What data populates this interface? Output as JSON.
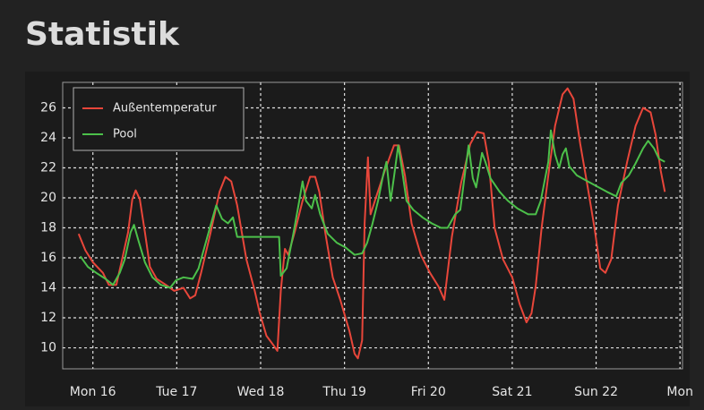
{
  "chart_data": {
    "type": "line",
    "title": "Statistik",
    "legend": "upper left",
    "grid": true,
    "xlim": [
      -0.36,
      7.03
    ],
    "ylim": [
      8.6,
      27.7
    ],
    "xticks": [
      {
        "value": 0,
        "label": "Mon 16"
      },
      {
        "value": 1,
        "label": "Tue 17"
      },
      {
        "value": 2,
        "label": "Wed 18"
      },
      {
        "value": 3,
        "label": "Thu 19"
      },
      {
        "value": 4,
        "label": "Fri 20"
      },
      {
        "value": 5,
        "label": "Sat 21"
      },
      {
        "value": 6,
        "label": "Sun 22"
      },
      {
        "value": 7,
        "label": "Mon"
      }
    ],
    "yticks": [
      10,
      12,
      14,
      16,
      18,
      20,
      22,
      24,
      26
    ],
    "series": [
      {
        "name": "Außentemperatur",
        "color": "#e8463a",
        "x": [
          -0.17,
          -0.09,
          0.0,
          0.12,
          0.19,
          0.28,
          0.36,
          0.42,
          0.47,
          0.51,
          0.56,
          0.62,
          0.68,
          0.76,
          0.87,
          0.97,
          1.08,
          1.16,
          1.22,
          1.29,
          1.4,
          1.51,
          1.58,
          1.65,
          1.72,
          1.83,
          1.93,
          1.99,
          2.07,
          2.15,
          2.2,
          2.24,
          2.29,
          2.33,
          2.41,
          2.5,
          2.59,
          2.65,
          2.7,
          2.77,
          2.86,
          2.95,
          3.06,
          3.12,
          3.16,
          3.21,
          3.24,
          3.28,
          3.31,
          3.38,
          3.48,
          3.59,
          3.65,
          3.72,
          3.8,
          3.91,
          4.02,
          4.12,
          4.19,
          4.28,
          4.39,
          4.5,
          4.58,
          4.66,
          4.72,
          4.79,
          4.89,
          5.0,
          5.09,
          5.17,
          5.23,
          5.28,
          5.35,
          5.43,
          5.51,
          5.6,
          5.66,
          5.73,
          5.81,
          5.9,
          5.98,
          6.05,
          6.11,
          6.18,
          6.26,
          6.37,
          6.47,
          6.56,
          6.65,
          6.71,
          6.77,
          6.82
        ],
        "values": [
          17.6,
          16.5,
          15.7,
          15.0,
          14.2,
          14.2,
          16.2,
          17.7,
          19.9,
          20.5,
          19.9,
          17.7,
          15.4,
          14.6,
          14.2,
          13.8,
          14.0,
          13.3,
          13.5,
          15.0,
          17.6,
          20.4,
          21.4,
          21.1,
          19.5,
          15.9,
          13.8,
          12.3,
          10.8,
          10.2,
          9.8,
          13.8,
          16.6,
          16.2,
          17.8,
          19.8,
          21.4,
          21.4,
          20.4,
          17.7,
          14.7,
          13.2,
          11.1,
          9.6,
          9.3,
          10.5,
          18.3,
          22.7,
          18.9,
          20.1,
          21.8,
          23.5,
          23.5,
          21.5,
          18.3,
          16.2,
          15.0,
          14.1,
          13.2,
          17.4,
          21.0,
          23.6,
          24.4,
          24.3,
          22.4,
          18.0,
          15.9,
          14.7,
          12.9,
          11.7,
          12.3,
          14.1,
          18.0,
          21.5,
          24.8,
          26.9,
          27.3,
          26.6,
          23.6,
          20.7,
          18.0,
          15.3,
          15.0,
          15.9,
          19.5,
          22.4,
          24.8,
          26.0,
          25.7,
          24.2,
          21.8,
          20.4
        ]
      },
      {
        "name": "Pool",
        "color": "#4cc04a",
        "x": [
          -0.15,
          -0.06,
          0.04,
          0.15,
          0.24,
          0.32,
          0.38,
          0.45,
          0.49,
          0.54,
          0.62,
          0.71,
          0.81,
          0.92,
          0.99,
          1.08,
          1.19,
          1.26,
          1.35,
          1.41,
          1.47,
          1.54,
          1.61,
          1.67,
          1.72,
          1.88,
          2.09,
          2.22,
          2.24,
          2.31,
          2.39,
          2.46,
          2.5,
          2.54,
          2.61,
          2.65,
          2.71,
          2.8,
          2.91,
          3.01,
          3.12,
          3.21,
          3.27,
          3.33,
          3.4,
          3.46,
          3.5,
          3.55,
          3.59,
          3.64,
          3.68,
          3.74,
          3.82,
          3.93,
          4.04,
          4.15,
          4.23,
          4.32,
          4.38,
          4.44,
          4.48,
          4.53,
          4.57,
          4.64,
          4.68,
          4.74,
          4.85,
          4.95,
          5.06,
          5.19,
          5.28,
          5.34,
          5.43,
          5.46,
          5.51,
          5.56,
          5.6,
          5.64,
          5.68,
          5.77,
          5.9,
          6.03,
          6.13,
          6.24,
          6.3,
          6.39,
          6.47,
          6.56,
          6.62,
          6.69,
          6.75,
          6.82
        ],
        "values": [
          16.1,
          15.4,
          15.0,
          14.6,
          14.2,
          15.0,
          15.9,
          17.7,
          18.2,
          17.2,
          15.7,
          14.7,
          14.2,
          14.0,
          14.5,
          14.7,
          14.6,
          15.3,
          17.1,
          18.3,
          19.5,
          18.6,
          18.3,
          18.7,
          17.4,
          17.4,
          17.4,
          17.4,
          14.8,
          15.3,
          17.6,
          19.8,
          21.1,
          19.8,
          19.3,
          20.2,
          18.9,
          17.6,
          17.0,
          16.7,
          16.2,
          16.3,
          17.0,
          18.2,
          19.8,
          21.5,
          22.4,
          19.8,
          21.4,
          23.5,
          22.1,
          19.8,
          19.2,
          18.7,
          18.3,
          18.0,
          18.0,
          18.9,
          19.2,
          21.8,
          23.5,
          21.3,
          20.7,
          23.0,
          22.4,
          21.3,
          20.4,
          19.8,
          19.3,
          18.9,
          18.9,
          19.8,
          22.4,
          24.5,
          22.9,
          22.0,
          22.9,
          23.3,
          22.1,
          21.5,
          21.1,
          20.7,
          20.4,
          20.1,
          21.0,
          21.5,
          22.3,
          23.3,
          23.8,
          23.3,
          22.6,
          22.4
        ]
      }
    ]
  }
}
